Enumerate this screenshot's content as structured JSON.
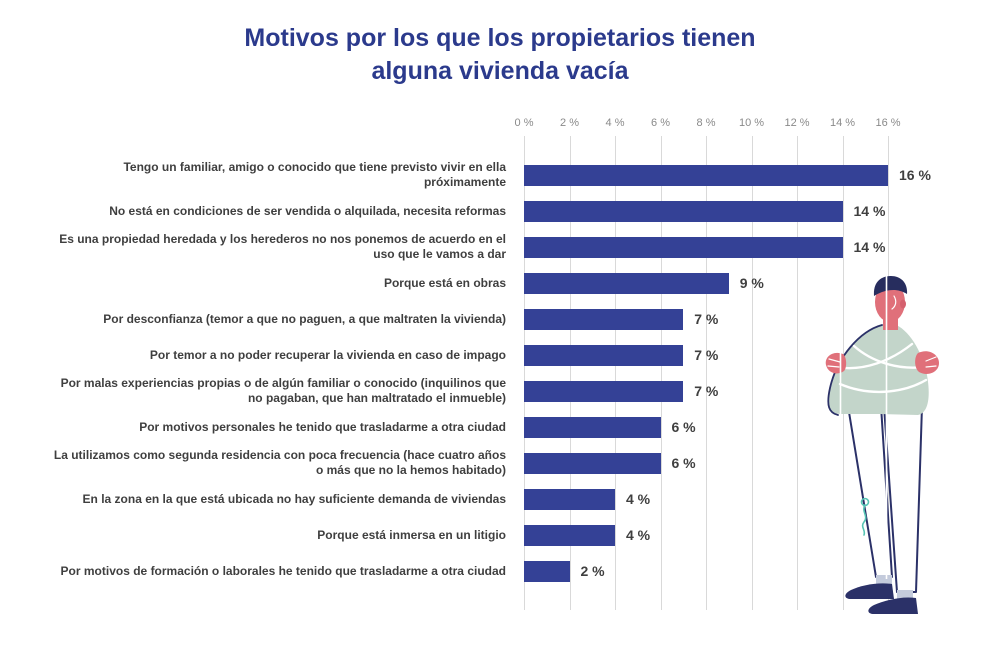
{
  "title": {
    "line1": "Motivos por los que los propietarios tienen",
    "line2": "alguna vivienda vacía"
  },
  "chart_data": {
    "type": "bar",
    "orientation": "horizontal",
    "title": "Motivos por los que los propietarios tienen alguna vivienda vacía",
    "categories": [
      "Tengo un familiar, amigo o conocido que tiene previsto vivir en ella próximamente",
      "No está en condiciones de ser vendida o alquilada, necesita reformas",
      "Es una propiedad heredada y los herederos no nos ponemos de acuerdo en el uso que le vamos a dar",
      "Porque está en obras",
      "Por desconfianza (temor a que no paguen, a que maltraten la vivienda)",
      "Por temor a no poder recuperar la vivienda en caso de impago",
      "Por malas experiencias propias o de algún familiar o conocido (inquilinos que no pagaban, que han maltratado el inmueble)",
      "Por motivos personales he tenido que trasladarme a otra ciudad",
      "La utilizamos como segunda residencia con poca frecuencia (hace cuatro años o más que no la hemos habitado)",
      "En la zona en la que está ubicada no hay suficiente demanda de viviendas",
      "Porque está inmersa en un litigio",
      "Por motivos de formación o laborales he tenido que trasladarme a otra ciudad"
    ],
    "values": [
      16,
      14,
      14,
      9,
      7,
      7,
      7,
      6,
      6,
      4,
      4,
      2
    ],
    "value_labels": [
      "16 %",
      "14 %",
      "14 %",
      "9 %",
      "7 %",
      "7 %",
      "7 %",
      "6 %",
      "6 %",
      "4 %",
      "4 %",
      "2 %"
    ],
    "xlabel": "",
    "ylabel": "",
    "axis": {
      "position": "top",
      "min": 0,
      "max": 16,
      "step": 2,
      "ticks": [
        "0 %",
        "2 %",
        "4 %",
        "6 %",
        "8 %",
        "10 %",
        "12 %",
        "14 %",
        "16 %"
      ]
    },
    "grid": true,
    "legend": false
  },
  "colors": {
    "title": "#2b3a8c",
    "bar": "#344196",
    "label": "#3f3f3f",
    "tick": "#8a8a8a",
    "grid": "#d9d9d9"
  },
  "illustration": {
    "name": "standing-man-arms-crossed",
    "colors": {
      "skin": "#e0707a",
      "hair": "#272d5e",
      "sweater": "#c3d5ca",
      "outline": "#2b3168",
      "sock": "#c4cbdc",
      "shoe": "#2b3168",
      "key": "#56c4b4"
    }
  }
}
